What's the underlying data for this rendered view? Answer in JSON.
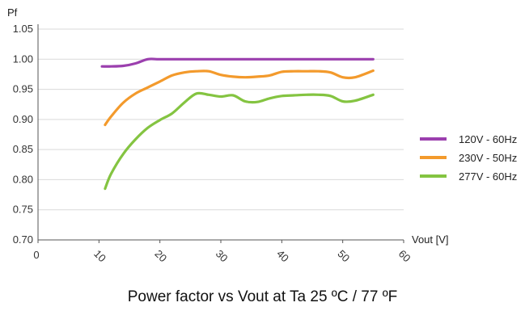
{
  "chart_data": {
    "type": "line",
    "title": "Power factor vs Vout at Ta 25 ºC / 77 ºF",
    "xlabel": "Vout [V]",
    "ylabel": "Pf",
    "xlim": [
      0,
      60
    ],
    "ylim": [
      0.7,
      1.05
    ],
    "x_ticks": [
      0,
      10,
      20,
      30,
      40,
      50,
      60
    ],
    "y_ticks": [
      0.7,
      0.75,
      0.8,
      0.85,
      0.9,
      0.95,
      1.0,
      1.05
    ],
    "grid": "horizontal",
    "legend_position": "right",
    "series": [
      {
        "name": "120V - 60Hz",
        "color": "#9b3fae",
        "x": [
          10.5,
          12,
          14,
          16,
          18,
          20,
          25,
          30,
          35,
          40,
          45,
          50,
          55
        ],
        "y": [
          0.988,
          0.988,
          0.989,
          0.993,
          1.0,
          1.0,
          1.0,
          1.0,
          1.0,
          1.0,
          1.0,
          1.0,
          1.0
        ]
      },
      {
        "name": "230V - 50Hz",
        "color": "#f39a2c",
        "x": [
          11,
          12,
          14,
          16,
          18,
          20,
          22,
          24,
          26,
          28,
          30,
          32,
          34,
          36,
          38,
          40,
          42,
          44,
          46,
          48,
          50,
          52,
          55
        ],
        "y": [
          0.891,
          0.905,
          0.928,
          0.943,
          0.953,
          0.963,
          0.973,
          0.978,
          0.98,
          0.98,
          0.974,
          0.971,
          0.97,
          0.971,
          0.973,
          0.979,
          0.98,
          0.98,
          0.98,
          0.978,
          0.97,
          0.97,
          0.981
        ]
      },
      {
        "name": "277V - 60Hz",
        "color": "#84c441",
        "x": [
          11,
          12,
          14,
          16,
          18,
          20,
          22,
          24,
          26,
          28,
          30,
          32,
          34,
          36,
          38,
          40,
          42,
          44,
          46,
          48,
          50,
          52,
          55
        ],
        "y": [
          0.785,
          0.81,
          0.843,
          0.867,
          0.886,
          0.899,
          0.91,
          0.928,
          0.943,
          0.941,
          0.938,
          0.94,
          0.93,
          0.929,
          0.935,
          0.939,
          0.94,
          0.941,
          0.941,
          0.939,
          0.93,
          0.931,
          0.941
        ]
      }
    ]
  }
}
